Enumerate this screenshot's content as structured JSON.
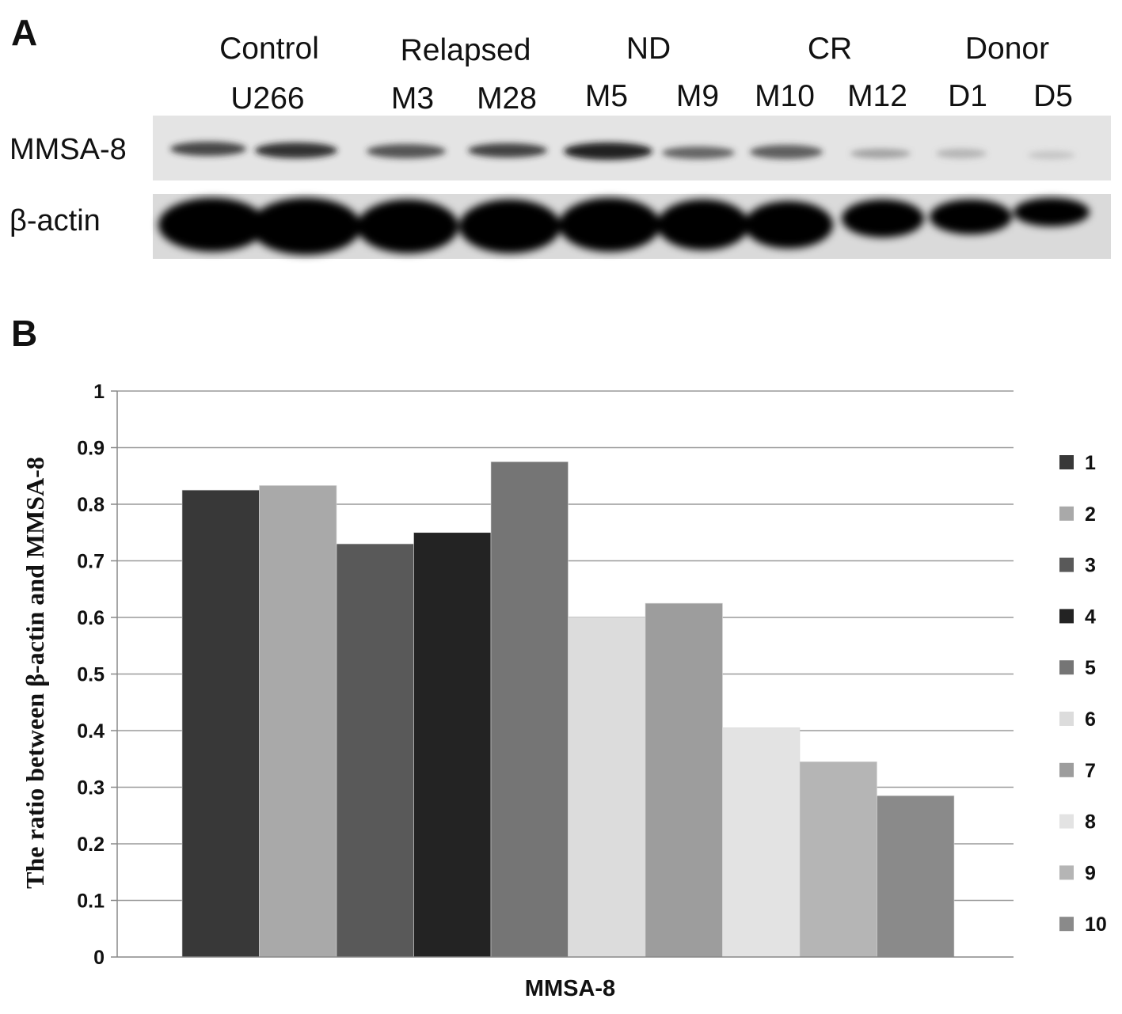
{
  "panel_a": {
    "letter": "A",
    "groups": [
      "Control",
      "Relapsed",
      "ND",
      "CR",
      "Donor"
    ],
    "lanes": [
      "U266",
      "M3",
      "M28",
      "M5",
      "M9",
      "M10",
      "M12",
      "D1",
      "D5"
    ],
    "rows": [
      "MMSA-8",
      "β-actin"
    ]
  },
  "panel_b": {
    "letter": "B"
  },
  "chart_data": {
    "type": "bar",
    "title": "",
    "xlabel": "MMSA-8",
    "ylabel": "The ratio between β-actin and MMSA-8",
    "ylim": [
      0,
      1
    ],
    "yticks": [
      "0",
      "0.1",
      "0.2",
      "0.3",
      "0.4",
      "0.5",
      "0.6",
      "0.7",
      "0.8",
      "0.9",
      "1"
    ],
    "grid": true,
    "legend_position": "right",
    "categories": [
      "MMSA-8"
    ],
    "series": [
      {
        "name": "1",
        "values": [
          0.825
        ],
        "color": "#383838"
      },
      {
        "name": "2",
        "values": [
          0.833
        ],
        "color": "#a9a9a9"
      },
      {
        "name": "3",
        "values": [
          0.73
        ],
        "color": "#595959"
      },
      {
        "name": "4",
        "values": [
          0.75
        ],
        "color": "#232323"
      },
      {
        "name": "5",
        "values": [
          0.875
        ],
        "color": "#757575"
      },
      {
        "name": "6",
        "values": [
          0.6
        ],
        "color": "#dcdcdc"
      },
      {
        "name": "7",
        "values": [
          0.625
        ],
        "color": "#9d9d9d"
      },
      {
        "name": "8",
        "values": [
          0.405
        ],
        "color": "#e3e3e3"
      },
      {
        "name": "9",
        "values": [
          0.345
        ],
        "color": "#b5b5b5"
      },
      {
        "name": "10",
        "values": [
          0.285
        ],
        "color": "#8a8a8a"
      }
    ]
  }
}
